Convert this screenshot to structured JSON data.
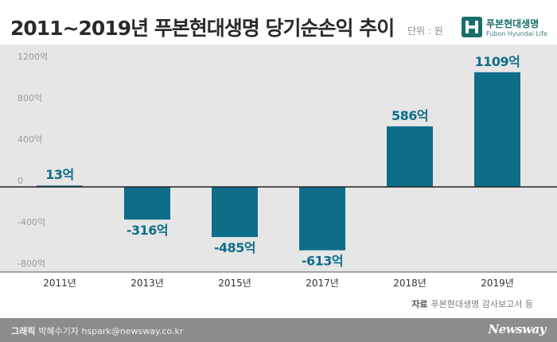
{
  "header": {
    "title": "2011~2019년 푸본현대생명 당기순손익 추이",
    "unit": "단위 : 원"
  },
  "logo": {
    "name_ko": "푸본현대생명",
    "name_en": "Fubon Hyundai Life",
    "color": "#1a6e6a"
  },
  "chart_data": {
    "type": "bar",
    "title": "2011~2019년 푸본현대생명 당기순손익 추이",
    "categories": [
      "2011년",
      "2013년",
      "2015년",
      "2017년",
      "2018년",
      "2019년"
    ],
    "values": [
      13,
      -316,
      -485,
      -613,
      586,
      1109
    ],
    "data_labels": [
      "13억",
      "-316억",
      "-485억",
      "-613억",
      "586억",
      "1109억"
    ],
    "yticks": [
      1200,
      800,
      400,
      0,
      -400,
      -800
    ],
    "ytick_labels": [
      "1200억",
      "800억",
      "400억",
      "0",
      "-400억",
      "-800억"
    ],
    "ylim": [
      -800,
      1200
    ],
    "grid": false,
    "bar_color": "#0e6e8a",
    "label_color": "#0e6e8a"
  },
  "source": {
    "label": "자료",
    "text": "푸본현대생명 감사보고서 등"
  },
  "footer": {
    "credit_label": "그래픽",
    "credit_text": "박혜수기자 hspark@newsway.co.kr",
    "brand": "Newsway"
  }
}
